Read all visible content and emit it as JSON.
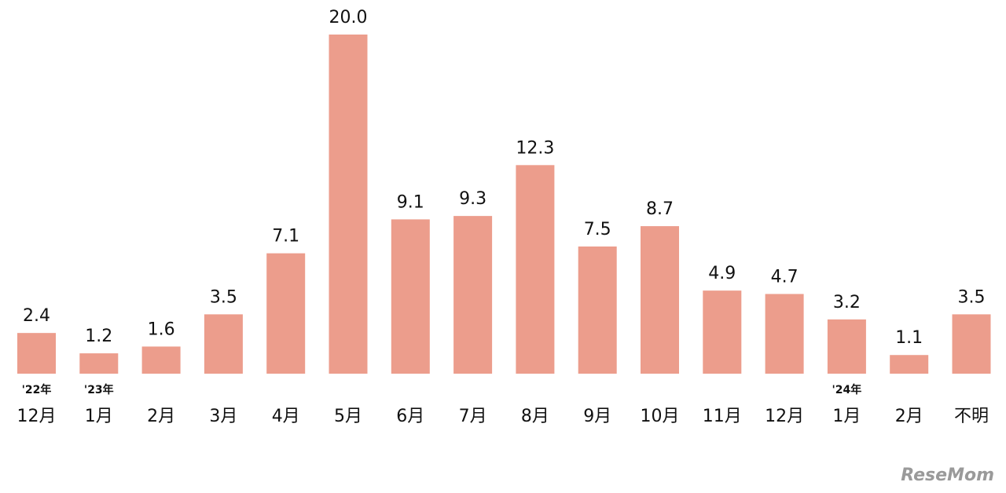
{
  "chart_data": {
    "type": "bar",
    "categories": [
      "12月",
      "1月",
      "2月",
      "3月",
      "4月",
      "5月",
      "6月",
      "7月",
      "8月",
      "9月",
      "10月",
      "11月",
      "12月",
      "1月",
      "2月",
      "不明"
    ],
    "category_notes": [
      "'22年",
      "'23年",
      null,
      null,
      null,
      null,
      null,
      null,
      null,
      null,
      null,
      null,
      null,
      "'24年",
      null,
      null
    ],
    "values": [
      2.4,
      1.2,
      1.6,
      3.5,
      7.1,
      20.0,
      9.1,
      9.3,
      12.3,
      7.5,
      8.7,
      4.9,
      4.7,
      3.2,
      1.1,
      3.5
    ],
    "value_labels": [
      "2.4",
      "1.2",
      "1.6",
      "3.5",
      "7.1",
      "20.0",
      "9.1",
      "9.3",
      "12.3",
      "7.5",
      "8.7",
      "4.9",
      "4.7",
      "3.2",
      "1.1",
      "3.5"
    ],
    "color": "#ec9d8c",
    "ylim": [
      0,
      20
    ],
    "watermark": "ReseMom"
  }
}
